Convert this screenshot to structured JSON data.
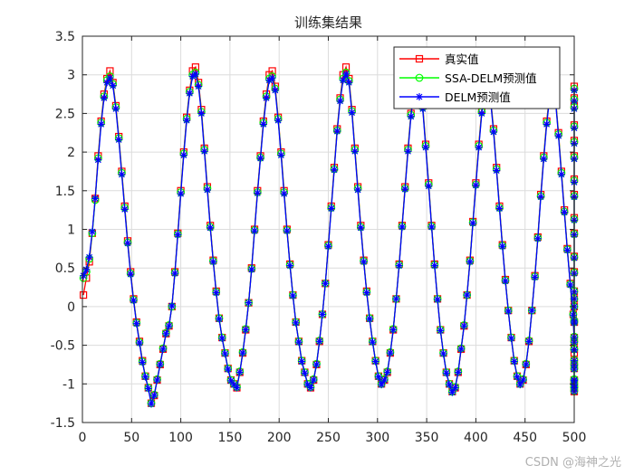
{
  "chart_data": {
    "type": "line",
    "title": "训练集结果",
    "xlabel": "",
    "ylabel": "",
    "xlim": [
      0,
      500
    ],
    "ylim": [
      -1.5,
      3.5
    ],
    "xticks": [
      0,
      50,
      100,
      150,
      200,
      250,
      300,
      350,
      400,
      450,
      500
    ],
    "yticks": [
      -1.5,
      -1,
      -0.5,
      0,
      0.5,
      1,
      1.5,
      2,
      2.5,
      3,
      3.5
    ],
    "ytick_labels": [
      "-1.5",
      "-1",
      "-0.5",
      "0",
      "0.5",
      "1",
      "1.5",
      "2",
      "2.5",
      "3",
      "3.5"
    ],
    "grid": true,
    "legend_position": "top-right",
    "x_step": 3,
    "series": [
      {
        "name": "真实值",
        "color": "#ff0000",
        "marker": "square",
        "values": [
          0.15,
          0.37,
          0.58,
          0.95,
          1.4,
          1.95,
          2.4,
          2.75,
          2.95,
          3.05,
          2.9,
          2.6,
          2.2,
          1.75,
          1.3,
          0.85,
          0.45,
          0.1,
          -0.2,
          -0.45,
          -0.7,
          -0.9,
          -1.05,
          -1.25,
          -1.15,
          -0.95,
          -0.75,
          -0.55,
          -0.35,
          -0.25,
          0.0,
          0.45,
          0.95,
          1.5,
          2.0,
          2.45,
          2.8,
          3.05,
          3.1,
          2.9,
          2.55,
          2.05,
          1.55,
          1.05,
          0.6,
          0.2,
          -0.15,
          -0.4,
          -0.6,
          -0.8,
          -0.95,
          -1.0,
          -1.05,
          -0.85,
          -0.6,
          -0.3,
          0.05,
          0.5,
          1.0,
          1.5,
          1.95,
          2.4,
          2.75,
          3.0,
          3.05,
          2.85,
          2.45,
          2.0,
          1.5,
          1.0,
          0.55,
          0.15,
          -0.2,
          -0.45,
          -0.7,
          -0.85,
          -1.0,
          -1.05,
          -0.95,
          -0.75,
          -0.45,
          -0.1,
          0.3,
          0.8,
          1.3,
          1.8,
          2.3,
          2.7,
          3.0,
          3.1,
          2.95,
          2.55,
          2.05,
          1.55,
          1.05,
          0.6,
          0.2,
          -0.15,
          -0.45,
          -0.7,
          -0.9,
          -1.0,
          -0.95,
          -0.85,
          -0.6,
          -0.3,
          0.1,
          0.55,
          1.05,
          1.55,
          2.05,
          2.5,
          2.85,
          3.05,
          2.95,
          2.6,
          2.1,
          1.6,
          1.05,
          0.55,
          0.1,
          -0.3,
          -0.6,
          -0.85,
          -1.0,
          -1.1,
          -1.05,
          -0.85,
          -0.55,
          -0.25,
          0.15,
          0.6,
          1.1,
          1.6,
          2.1,
          2.55,
          2.85,
          2.95,
          2.7,
          2.3,
          1.8,
          1.3,
          0.8,
          0.35,
          -0.05,
          -0.4,
          -0.7,
          -0.9,
          -1.0,
          -0.95,
          -0.75,
          -0.45,
          -0.05,
          0.4,
          0.9,
          1.45,
          1.95,
          2.4,
          2.75,
          2.95,
          2.7,
          2.25,
          1.75,
          1.25,
          0.75,
          0.3,
          -0.1,
          -0.45,
          -0.75,
          -0.95,
          -1.05,
          -0.95,
          -0.7,
          -0.4,
          0.0,
          0.45,
          0.95,
          1.45,
          1.95,
          2.35,
          2.7,
          2.85,
          2.6,
          2.15,
          1.65,
          1.15,
          0.65,
          0.2,
          -0.2,
          -0.55,
          -0.8,
          -1.0,
          -1.1,
          -1.05,
          -0.6,
          -0.2,
          0.1
        ]
      },
      {
        "name": "SSA-DELM预测值",
        "color": "#00ff00",
        "marker": "circle",
        "values": [
          0.37,
          0.45,
          0.62,
          0.95,
          1.38,
          1.92,
          2.38,
          2.72,
          2.93,
          2.98,
          2.88,
          2.58,
          2.18,
          1.73,
          1.28,
          0.83,
          0.43,
          0.09,
          -0.21,
          -0.46,
          -0.71,
          -0.9,
          -1.05,
          -1.25,
          -1.14,
          -0.94,
          -0.74,
          -0.54,
          -0.34,
          -0.24,
          0.0,
          0.44,
          0.94,
          1.48,
          1.98,
          2.43,
          2.78,
          3.0,
          3.03,
          2.87,
          2.52,
          2.03,
          1.53,
          1.03,
          0.59,
          0.19,
          -0.15,
          -0.4,
          -0.6,
          -0.8,
          -0.95,
          -1.0,
          -1.04,
          -0.84,
          -0.59,
          -0.29,
          0.05,
          0.49,
          0.99,
          1.48,
          1.93,
          2.38,
          2.72,
          2.95,
          2.98,
          2.82,
          2.43,
          1.98,
          1.48,
          0.99,
          0.54,
          0.15,
          -0.2,
          -0.45,
          -0.7,
          -0.85,
          -1.0,
          -1.04,
          -0.94,
          -0.74,
          -0.44,
          -0.1,
          0.3,
          0.79,
          1.28,
          1.78,
          2.28,
          2.68,
          2.95,
          3.03,
          2.92,
          2.53,
          2.03,
          1.53,
          1.03,
          0.59,
          0.19,
          -0.15,
          -0.45,
          -0.7,
          -0.9,
          -1.0,
          -0.94,
          -0.84,
          -0.59,
          -0.29,
          0.1,
          0.54,
          1.04,
          1.53,
          2.03,
          2.48,
          2.82,
          3.0,
          2.92,
          2.58,
          2.08,
          1.58,
          1.04,
          0.54,
          0.1,
          -0.3,
          -0.6,
          -0.85,
          -1.0,
          -1.1,
          -1.04,
          -0.84,
          -0.54,
          -0.24,
          0.15,
          0.59,
          1.09,
          1.58,
          2.08,
          2.52,
          2.82,
          2.92,
          2.68,
          2.28,
          1.78,
          1.28,
          0.79,
          0.34,
          -0.05,
          -0.4,
          -0.7,
          -0.9,
          -1.0,
          -0.94,
          -0.74,
          -0.44,
          -0.05,
          0.39,
          0.89,
          1.43,
          1.93,
          2.38,
          2.72,
          2.92,
          2.68,
          2.23,
          1.73,
          1.23,
          0.74,
          0.29,
          -0.1,
          -0.45,
          -0.75,
          -0.95,
          -1.04,
          -0.94,
          -0.69,
          -0.39,
          0.0,
          0.44,
          0.94,
          1.43,
          1.93,
          2.33,
          2.68,
          2.82,
          2.58,
          2.13,
          1.63,
          1.13,
          0.64,
          0.2,
          -0.2,
          -0.55,
          -0.8,
          -1.0,
          -1.09,
          -1.04,
          -0.55,
          -0.18,
          0.1
        ]
      },
      {
        "name": "DELM预测值",
        "color": "#0000ff",
        "marker": "asterisk",
        "values": [
          0.4,
          0.48,
          0.64,
          0.97,
          1.4,
          1.9,
          2.36,
          2.7,
          2.9,
          2.96,
          2.86,
          2.56,
          2.16,
          1.71,
          1.26,
          0.82,
          0.42,
          0.08,
          -0.22,
          -0.47,
          -0.72,
          -0.91,
          -1.06,
          -1.26,
          -1.15,
          -0.95,
          -0.75,
          -0.55,
          -0.35,
          -0.25,
          0.01,
          0.43,
          0.93,
          1.46,
          1.96,
          2.41,
          2.76,
          2.98,
          3.01,
          2.85,
          2.5,
          2.01,
          1.51,
          1.02,
          0.58,
          0.18,
          -0.16,
          -0.41,
          -0.61,
          -0.81,
          -0.96,
          -1.01,
          -1.05,
          -0.85,
          -0.6,
          -0.3,
          0.05,
          0.48,
          0.98,
          1.47,
          1.92,
          2.36,
          2.7,
          2.93,
          2.96,
          2.8,
          2.41,
          1.96,
          1.46,
          0.98,
          0.53,
          0.14,
          -0.21,
          -0.46,
          -0.71,
          -0.86,
          -1.01,
          -1.05,
          -0.95,
          -0.75,
          -0.45,
          -0.1,
          0.3,
          0.78,
          1.27,
          1.77,
          2.27,
          2.66,
          2.93,
          3.01,
          2.9,
          2.51,
          2.01,
          1.51,
          1.02,
          0.58,
          0.18,
          -0.16,
          -0.46,
          -0.71,
          -0.91,
          -1.01,
          -0.95,
          -0.85,
          -0.6,
          -0.3,
          0.1,
          0.53,
          1.03,
          1.52,
          2.01,
          2.46,
          2.8,
          2.98,
          2.9,
          2.56,
          2.06,
          1.56,
          1.03,
          0.53,
          0.09,
          -0.31,
          -0.61,
          -0.86,
          -1.01,
          -1.11,
          -1.05,
          -0.85,
          -0.55,
          -0.25,
          0.15,
          0.58,
          1.08,
          1.57,
          2.06,
          2.5,
          2.8,
          2.9,
          2.66,
          2.26,
          1.76,
          1.27,
          0.78,
          0.33,
          -0.06,
          -0.41,
          -0.71,
          -0.91,
          -1.01,
          -0.95,
          -0.75,
          -0.45,
          -0.05,
          0.38,
          0.88,
          1.42,
          1.91,
          2.36,
          2.7,
          2.9,
          2.66,
          2.21,
          1.71,
          1.22,
          0.73,
          0.28,
          -0.11,
          -0.46,
          -0.76,
          -0.96,
          -1.05,
          -0.95,
          -0.7,
          -0.4,
          0.0,
          0.43,
          0.93,
          1.42,
          1.91,
          2.31,
          2.66,
          2.8,
          2.56,
          2.11,
          1.61,
          1.12,
          0.63,
          0.19,
          -0.21,
          -0.56,
          -0.81,
          -1.01,
          -1.1,
          -1.05,
          -0.56,
          -0.19,
          0.1
        ]
      }
    ]
  },
  "watermark": "CSDN @海神之光"
}
